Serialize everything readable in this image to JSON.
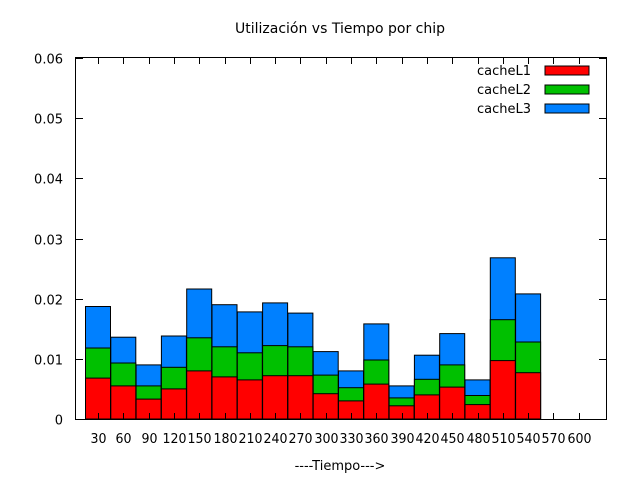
{
  "chart_data": {
    "type": "bar",
    "stacked": true,
    "title": "Utilización vs Tiempo por chip",
    "xlabel": "----Tiempo--->",
    "ylabel": "",
    "ylim": [
      0,
      0.06
    ],
    "yticks": [
      "0",
      "0.01",
      "0.02",
      "0.03",
      "0.04",
      "0.05",
      "0.06"
    ],
    "legend_position": "top-right",
    "grid": false,
    "categories": [
      "30",
      "60",
      "90",
      "120",
      "150",
      "180",
      "210",
      "240",
      "270",
      "300",
      "330",
      "360",
      "390",
      "420",
      "450",
      "480",
      "510",
      "540",
      "570",
      "600"
    ],
    "series": [
      {
        "name": "cacheL1",
        "color": "#ff0000",
        "values": [
          0.0068,
          0.0055,
          0.0033,
          0.005,
          0.008,
          0.007,
          0.0065,
          0.0072,
          0.0072,
          0.0042,
          0.003,
          0.0058,
          0.0022,
          0.004,
          0.0053,
          0.0024,
          0.0097,
          0.0077,
          0,
          0
        ]
      },
      {
        "name": "cacheL2",
        "color": "#00c000",
        "values": [
          0.0118,
          0.0093,
          0.0055,
          0.0086,
          0.0135,
          0.012,
          0.011,
          0.0122,
          0.012,
          0.0073,
          0.0052,
          0.0098,
          0.0035,
          0.0066,
          0.009,
          0.0039,
          0.0165,
          0.0128,
          0,
          0
        ]
      },
      {
        "name": "cacheL3",
        "color": "#0080ff",
        "values": [
          0.0187,
          0.0136,
          0.009,
          0.0138,
          0.0216,
          0.019,
          0.0178,
          0.0193,
          0.0176,
          0.0112,
          0.008,
          0.0158,
          0.0055,
          0.0106,
          0.0142,
          0.0065,
          0.0268,
          0.0208,
          0,
          0
        ]
      }
    ]
  }
}
